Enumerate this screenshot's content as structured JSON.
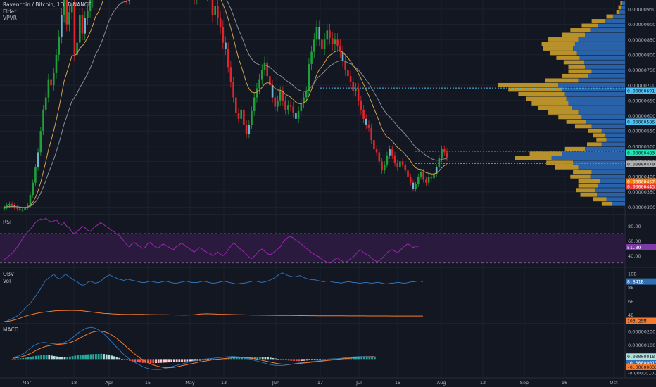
{
  "header": {
    "symbol": "Ravencoin / Bitcoin, 1D, BINANCE",
    "studies": [
      "Elder",
      "VPVR"
    ]
  },
  "colors": {
    "background": "#131722",
    "up": "#26a69a",
    "down": "#ef5350",
    "volume_profile_up": "#2962a8",
    "volume_profile_down": "#b8912a",
    "rsi": "#9c27b0",
    "obv": "#2f6fb2",
    "vol_line": "#f57c2e",
    "macd": "#2f6fb2",
    "signal": "#f57c2e"
  },
  "chart_data": [
    {
      "type": "candlestick",
      "pane": "price",
      "x_ticks": [
        "Mar",
        "18",
        "Apr",
        "15",
        "May",
        "13",
        "Jun",
        "17",
        "Jul",
        "15",
        "Aug",
        "12",
        "Sep",
        "16",
        "Oct"
      ],
      "y_ticks": [
        "0.00000950",
        "0.00000900",
        "0.00000850",
        "0.00000800",
        "0.00000750",
        "0.00000700",
        "0.00000650",
        "0.00000600",
        "0.00000550",
        "0.00000500",
        "0.00000450",
        "0.00000400",
        "0.00000350",
        "0.00000300"
      ],
      "ylim": [
        2.8e-06,
        9.8e-06
      ],
      "close": [
        3e-06,
        3.05e-06,
        3.1e-06,
        3.05e-06,
        3e-06,
        2.95e-06,
        2.9e-06,
        2.9e-06,
        3e-06,
        3.05e-06,
        3.4e-06,
        3.8e-06,
        4.3e-06,
        4.8e-06,
        5.5e-06,
        6.2e-06,
        6.6e-06,
        7.2e-06,
        7e-06,
        7.4e-06,
        8e-06,
        8.6e-06,
        9.3e-06,
        9.8e-06,
        9e-06,
        9.4e-06,
        9.7e-06,
        8e-06,
        8.4e-06,
        9.3e-06,
        8.7e-06,
        9.2e-06,
        9.45e-06,
        9.8e-06,
        1.03e-05,
        1.09e-05,
        1.02e-05,
        1.06e-05,
        1.13e-05,
        1.18e-05,
        1.23e-05,
        1.18e-05,
        1.14e-05,
        1.08e-05,
        1.11e-05,
        1.06e-05,
        1.01e-05,
        9.9e-06,
        1.03e-05,
        1.06e-05,
        1.09e-05,
        1.04e-05,
        1.01e-05,
        1.06e-05,
        1.13e-05,
        1.16e-05,
        1.11e-05,
        1.07e-05,
        1.05e-05,
        1.01e-05,
        1.04e-05,
        1.08e-05,
        1.1e-05,
        1.07e-05,
        1.04e-05,
        1.01e-05,
        1.06e-05,
        1.1e-05,
        1.13e-05,
        1.16e-05,
        1.11e-05,
        1.08e-05,
        1.03e-05,
        9.9e-06,
        1.02e-05,
        1.05e-05,
        1.08e-05,
        1.04e-05,
        1e-05,
        9.85e-06,
        9.3e-06,
        9.6e-06,
        9.2e-06,
        8.9e-06,
        8.4e-06,
        8.2e-06,
        7.6e-06,
        7.1e-06,
        6.6e-06,
        6.1e-06,
        5.9e-06,
        6.2e-06,
        5.7e-06,
        5.4e-06,
        5.7e-06,
        6.15e-06,
        6.6e-06,
        6.9e-06,
        7.2e-06,
        7.5e-06,
        7.75e-06,
        7.3e-06,
        7e-06,
        6.6e-06,
        6.3e-06,
        6.5e-06,
        6.8e-06,
        6.5e-06,
        6.2e-06,
        6.35e-06,
        6.3e-06,
        6.1e-06,
        5.9e-06,
        6.15e-06,
        6.4e-06,
        6.6e-06,
        6.8e-06,
        7.7e-06,
        8.1e-06,
        8.5e-06,
        8.9e-06,
        8.5e-06,
        8.2e-06,
        8.5e-06,
        8.8e-06,
        8.55e-06,
        8.35e-06,
        8.5e-06,
        8.3e-06,
        8.1e-06,
        7.8e-06,
        7.5e-06,
        7.3e-06,
        7.1e-06,
        6.8e-06,
        6.9e-06,
        6.5e-06,
        6.2e-06,
        5.9e-06,
        5.7e-06,
        5.6e-06,
        5.2e-06,
        4.9e-06,
        4.8e-06,
        4.5e-06,
        4.2e-06,
        4.4e-06,
        4.7e-06,
        4.9e-06,
        4.7e-06,
        4.45e-06,
        4.3e-06,
        4.5e-06,
        4.4e-06,
        4.2e-06,
        4e-06,
        3.8e-06,
        3.6e-06,
        3.75e-06,
        4e-06,
        4.15e-06,
        3.9e-06,
        3.8e-06,
        4e-06,
        3.95e-06,
        4.1e-06,
        4.3e-06,
        4.6e-06,
        4.9e-06,
        4.8e-06,
        4.63e-06
      ]
    },
    {
      "type": "bar",
      "pane": "volume-profile",
      "levels": [
        3.1e-06,
        3.25e-06,
        3.4e-06,
        3.55e-06,
        3.7e-06,
        3.85e-06,
        4e-06,
        4.15e-06,
        4.3e-06,
        4.45e-06,
        4.6e-06,
        4.75e-06,
        4.9e-06,
        5.05e-06,
        5.2e-06,
        5.35e-06,
        5.5e-06,
        5.65e-06,
        5.8e-06,
        5.95e-06,
        6.1e-06,
        6.25e-06,
        6.4e-06,
        6.55e-06,
        6.7e-06,
        6.85e-06,
        7e-06,
        7.15e-06,
        7.3e-06,
        7.45e-06,
        7.6e-06,
        7.75e-06,
        7.9e-06,
        8.05e-06,
        8.2e-06,
        8.35e-06,
        8.5e-06,
        8.65e-06,
        8.8e-06,
        8.95e-06,
        9.1e-06,
        9.25e-06,
        9.4e-06,
        9.55e-06,
        9.7e-06
      ],
      "up": [
        20,
        28,
        42,
        45,
        40,
        38,
        52,
        50,
        70,
        78,
        110,
        95,
        60,
        35,
        28,
        30,
        35,
        50,
        58,
        65,
        70,
        80,
        85,
        88,
        90,
        95,
        100,
        70,
        55,
        50,
        60,
        62,
        68,
        72,
        78,
        75,
        70,
        60,
        52,
        40,
        30,
        18,
        8,
        6,
        4
      ],
      "down": [
        15,
        20,
        25,
        28,
        30,
        32,
        30,
        28,
        35,
        40,
        55,
        48,
        30,
        22,
        15,
        18,
        20,
        25,
        30,
        35,
        45,
        50,
        55,
        60,
        70,
        80,
        90,
        50,
        40,
        35,
        25,
        30,
        35,
        40,
        45,
        50,
        45,
        35,
        30,
        25,
        20,
        10,
        5,
        4,
        3
      ],
      "value_tags": [
        "0.00000691",
        "0.00000586",
        "0.00000483",
        "0.00000470",
        "0.00000457",
        "0.00000443"
      ]
    },
    {
      "type": "line",
      "pane": "rsi",
      "title": "RSI",
      "y_ticks": [
        "80.00",
        "60.00",
        "40.00"
      ],
      "ylim": [
        25,
        95
      ],
      "band": [
        30,
        70
      ],
      "last_value": "51.39",
      "values": [
        35,
        37,
        40,
        43,
        47,
        52,
        57,
        63,
        68,
        72,
        76,
        80,
        85,
        88,
        90,
        89,
        91,
        88,
        86,
        87,
        89,
        84,
        82,
        85,
        80,
        78,
        72,
        70,
        73,
        76,
        80,
        78,
        75,
        73,
        77,
        80,
        82,
        85,
        83,
        80,
        78,
        75,
        73,
        70,
        68,
        64,
        60,
        55,
        52,
        56,
        58,
        55,
        53,
        50,
        51,
        56,
        58,
        55,
        52,
        50,
        53,
        56,
        54,
        52,
        50,
        48,
        52,
        54,
        57,
        55,
        52,
        50,
        47,
        45,
        48,
        51,
        49,
        46,
        44,
        43,
        40,
        42,
        45,
        42,
        40,
        43,
        48,
        53,
        57,
        55,
        51,
        48,
        45,
        42,
        38,
        36,
        39,
        43,
        47,
        49,
        46,
        43,
        41,
        43,
        46,
        49,
        52,
        58,
        62,
        65,
        66,
        64,
        61,
        59,
        56,
        53,
        50,
        47,
        44,
        42,
        40,
        38,
        35,
        33,
        31,
        30,
        32,
        35,
        37,
        34,
        32,
        31,
        33,
        36,
        38,
        42,
        46,
        48,
        44,
        42,
        40,
        37,
        34,
        32,
        33,
        36,
        40,
        44,
        47,
        48,
        46,
        44,
        47,
        51,
        54,
        56,
        54,
        51,
        53,
        52
      ]
    },
    {
      "type": "line",
      "pane": "obv",
      "title": "OBV",
      "subtitle": "Vol",
      "y_ticks": [
        "10B",
        "8B",
        "6B",
        "4B"
      ],
      "ylim": [
        2.8,
        10.8
      ],
      "last_values": [
        "8.841B",
        "103.25M"
      ],
      "obv": [
        3.0,
        3.1,
        3.3,
        3.5,
        3.7,
        4.0,
        4.4,
        4.9,
        5.3,
        5.7,
        6.3,
        6.9,
        7.5,
        8.2,
        8.9,
        9.3,
        9.6,
        9.9,
        9.4,
        9.2,
        9.6,
        9.9,
        9.6,
        9.3,
        9.0,
        8.8,
        8.4,
        8.3,
        8.5,
        8.9,
        8.8,
        8.6,
        8.7,
        8.9,
        9.3,
        9.6,
        9.8,
        9.6,
        9.4,
        9.2,
        9.1,
        9.0,
        9.2,
        9.1,
        9.0,
        8.9,
        8.8,
        8.7,
        8.7,
        8.8,
        8.9,
        8.8,
        8.7,
        8.7,
        8.8,
        8.9,
        8.8,
        8.7,
        8.6,
        8.6,
        8.7,
        8.8,
        8.9,
        8.8,
        8.7,
        8.7,
        8.7,
        8.8,
        8.9,
        8.8,
        8.7,
        8.6,
        8.6,
        8.7,
        8.8,
        8.9,
        8.8,
        8.7,
        8.6,
        8.5,
        8.5,
        8.6,
        8.6,
        8.7,
        8.8,
        8.9,
        8.9,
        8.8,
        8.7,
        8.8,
        8.9,
        9.1,
        9.3,
        9.6,
        9.9,
        10.1,
        9.9,
        9.7,
        9.6,
        9.5,
        9.6,
        9.7,
        9.5,
        9.3,
        9.2,
        9.1,
        9.1,
        9.0,
        8.9,
        8.8,
        8.9,
        8.9,
        8.8,
        8.7,
        8.7,
        8.6,
        8.7,
        8.8,
        8.8,
        8.7,
        8.7,
        8.6,
        8.6,
        8.7,
        8.7,
        8.6,
        8.6,
        8.7,
        8.7,
        8.6,
        8.5,
        8.5,
        8.6,
        8.6,
        8.7,
        8.7,
        8.6,
        8.6,
        8.7,
        8.8,
        8.8,
        8.9,
        8.9,
        8.8
      ],
      "vol": [
        3.0,
        3.05,
        3.1,
        3.2,
        3.3,
        3.45,
        3.6,
        3.75,
        3.9,
        4.0,
        4.1,
        4.2,
        4.3,
        4.35,
        4.4,
        4.45,
        4.5,
        4.55,
        4.6,
        4.6,
        4.62,
        4.63,
        4.64,
        4.65,
        4.64,
        4.62,
        4.6,
        4.55,
        4.5,
        4.45,
        4.4,
        4.35,
        4.3,
        4.25,
        4.2,
        4.18,
        4.15,
        4.12,
        4.1,
        4.08,
        4.06,
        4.05,
        4.04,
        4.04,
        4.05,
        4.05,
        4.06,
        4.05,
        4.04,
        4.03,
        4.02,
        4.02,
        4.01,
        4.0,
        4.0,
        4.0,
        3.99,
        3.98,
        3.98,
        3.97,
        3.97,
        3.96,
        3.96,
        3.97,
        3.98,
        4.0,
        4.05,
        4.1,
        4.12,
        4.14,
        4.13,
        4.12,
        4.1,
        4.08,
        4.07,
        4.06,
        4.05,
        4.04,
        4.03,
        4.02,
        4.01,
        4.0,
        3.99,
        3.98,
        3.97,
        3.96,
        3.95,
        3.95,
        3.94,
        3.94,
        3.93,
        3.93,
        3.92,
        3.92,
        3.91,
        3.91,
        3.9,
        3.9,
        3.9,
        3.89,
        3.89,
        3.88,
        3.88,
        3.88,
        3.87,
        3.87,
        3.87,
        3.86,
        3.86,
        3.86,
        3.86,
        3.85,
        3.85,
        3.85,
        3.85,
        3.85,
        3.85,
        3.84,
        3.84,
        3.84,
        3.84,
        3.84,
        3.84,
        3.84,
        3.83,
        3.83,
        3.83,
        3.83,
        3.83,
        3.83,
        3.83,
        3.83,
        3.82,
        3.82,
        3.82,
        3.82,
        3.82,
        3.82,
        3.82,
        3.82,
        3.82,
        3.82,
        3.82,
        3.82
      ]
    },
    {
      "type": "bar",
      "pane": "macd",
      "title": "MACD",
      "y_ticks": [
        "0.00000200",
        "0.00000100",
        "0.00000000",
        "-0.00000100"
      ],
      "ylim": [
        -1.3e-06,
        2.5e-06
      ],
      "last_values": [
        "0.00000018",
        "-0.00000013",
        "-0.00000031"
      ],
      "histogram": [
        0.01,
        0.02,
        0.03,
        0.05,
        0.07,
        0.09,
        0.12,
        0.16,
        0.2,
        0.23,
        0.25,
        0.27,
        0.28,
        0.28,
        0.27,
        0.25,
        0.22,
        0.19,
        0.17,
        0.16,
        0.15,
        0.16,
        0.18,
        0.21,
        0.25,
        0.28,
        0.3,
        0.32,
        0.33,
        0.34,
        0.35,
        0.36,
        0.37,
        0.37,
        0.38,
        0.37,
        0.34,
        0.3,
        0.25,
        0.2,
        0.14,
        0.08,
        0.02,
        -0.03,
        -0.08,
        -0.12,
        -0.16,
        -0.2,
        -0.23,
        -0.25,
        -0.27,
        -0.28,
        -0.29,
        -0.3,
        -0.3,
        -0.29,
        -0.28,
        -0.27,
        -0.26,
        -0.25,
        -0.24,
        -0.23,
        -0.22,
        -0.21,
        -0.2,
        -0.19,
        -0.18,
        -0.17,
        -0.16,
        -0.15,
        -0.14,
        -0.13,
        -0.11,
        -0.09,
        -0.07,
        -0.05,
        -0.03,
        -0.01,
        0.01,
        0.02,
        0.03,
        0.04,
        0.05,
        0.06,
        0.07,
        0.08,
        0.09,
        0.1,
        0.11,
        0.12,
        0.13,
        0.14,
        0.15,
        0.16,
        0.17,
        0.17,
        0.16,
        0.15,
        0.13,
        0.1,
        0.07,
        0.04,
        0.01,
        -0.02,
        -0.05,
        -0.08,
        -0.1,
        -0.12,
        -0.13,
        -0.14,
        -0.14,
        -0.13,
        -0.12,
        -0.1,
        -0.08,
        -0.06,
        -0.04,
        -0.02,
        -0.01,
        0.0,
        0.01,
        0.02,
        0.03,
        0.04,
        0.05,
        0.06,
        0.07,
        0.08,
        0.09,
        0.1,
        0.11,
        0.12,
        0.13,
        0.14,
        0.15,
        0.16,
        0.17,
        0.17,
        0.18,
        0.18
      ],
      "macd": [
        0.1,
        0.15,
        0.2,
        0.28,
        0.38,
        0.5,
        0.65,
        0.8,
        0.95,
        1.05,
        1.12,
        1.18,
        1.2,
        1.18,
        1.15,
        1.12,
        1.1,
        1.08,
        1.1,
        1.15,
        1.2,
        1.3,
        1.4,
        1.55,
        1.7,
        1.85,
        2.0,
        2.1,
        2.2,
        2.25,
        2.28,
        2.26,
        2.2,
        2.1,
        1.98,
        1.82,
        1.65,
        1.45,
        1.25,
        1.05,
        0.85,
        0.65,
        0.45,
        0.28,
        0.12,
        -0.02,
        -0.15,
        -0.25,
        -0.35,
        -0.45,
        -0.55,
        -0.62,
        -0.68,
        -0.72,
        -0.75,
        -0.76,
        -0.76,
        -0.74,
        -0.7,
        -0.65,
        -0.6,
        -0.55,
        -0.5,
        -0.45,
        -0.4,
        -0.35,
        -0.3,
        -0.25,
        -0.2,
        -0.15,
        -0.12,
        -0.08,
        -0.05,
        -0.02,
        0.0,
        0.02,
        0.04,
        0.06,
        0.08,
        0.1,
        0.12,
        0.14,
        0.16,
        0.17,
        0.18,
        0.18,
        0.17,
        0.15,
        0.12,
        0.08,
        0.04,
        0.0,
        -0.05,
        -0.1,
        -0.15,
        -0.2,
        -0.25,
        -0.3,
        -0.35,
        -0.4,
        -0.43,
        -0.45,
        -0.46,
        -0.46,
        -0.45,
        -0.43,
        -0.4,
        -0.37,
        -0.34,
        -0.31,
        -0.28,
        -0.26,
        -0.24,
        -0.22,
        -0.2,
        -0.18,
        -0.16,
        -0.14,
        -0.12,
        -0.1,
        -0.08,
        -0.06,
        -0.04,
        -0.02,
        0.0,
        0.02,
        0.05,
        0.08,
        0.1,
        0.12,
        0.14,
        0.16,
        0.17,
        0.18,
        0.18,
        0.18,
        0.18,
        0.18,
        0.18,
        0.18
      ],
      "signal": [
        0.05,
        0.08,
        0.11,
        0.15,
        0.2,
        0.26,
        0.34,
        0.42,
        0.52,
        0.62,
        0.72,
        0.8,
        0.87,
        0.93,
        0.97,
        1.0,
        1.02,
        1.04,
        1.06,
        1.08,
        1.1,
        1.14,
        1.19,
        1.26,
        1.34,
        1.43,
        1.53,
        1.63,
        1.73,
        1.82,
        1.9,
        1.96,
        2.0,
        2.02,
        2.01,
        1.98,
        1.92,
        1.84,
        1.74,
        1.62,
        1.48,
        1.33,
        1.17,
        1.0,
        0.83,
        0.66,
        0.5,
        0.35,
        0.2,
        0.07,
        -0.05,
        -0.16,
        -0.26,
        -0.35,
        -0.42,
        -0.48,
        -0.53,
        -0.57,
        -0.6,
        -0.62,
        -0.62,
        -0.61,
        -0.59,
        -0.56,
        -0.52,
        -0.48,
        -0.44,
        -0.4,
        -0.36,
        -0.32,
        -0.28,
        -0.24,
        -0.2,
        -0.17,
        -0.14,
        -0.11,
        -0.08,
        -0.05,
        -0.03,
        -0.01,
        0.01,
        0.03,
        0.05,
        0.07,
        0.09,
        0.1,
        0.11,
        0.12,
        0.12,
        0.11,
        0.1,
        0.08,
        0.05,
        0.02,
        -0.02,
        -0.06,
        -0.1,
        -0.14,
        -0.18,
        -0.22,
        -0.26,
        -0.3,
        -0.33,
        -0.35,
        -0.37,
        -0.38,
        -0.38,
        -0.37,
        -0.36,
        -0.34,
        -0.32,
        -0.3,
        -0.28,
        -0.26,
        -0.24,
        -0.22,
        -0.2,
        -0.18,
        -0.16,
        -0.14,
        -0.12,
        -0.1,
        -0.08,
        -0.06,
        -0.04,
        -0.02,
        0.0,
        0.02,
        0.04,
        0.06,
        0.08,
        0.1,
        0.12,
        0.13,
        0.14,
        0.15,
        0.16,
        0.16,
        0.17,
        0.17
      ]
    }
  ]
}
